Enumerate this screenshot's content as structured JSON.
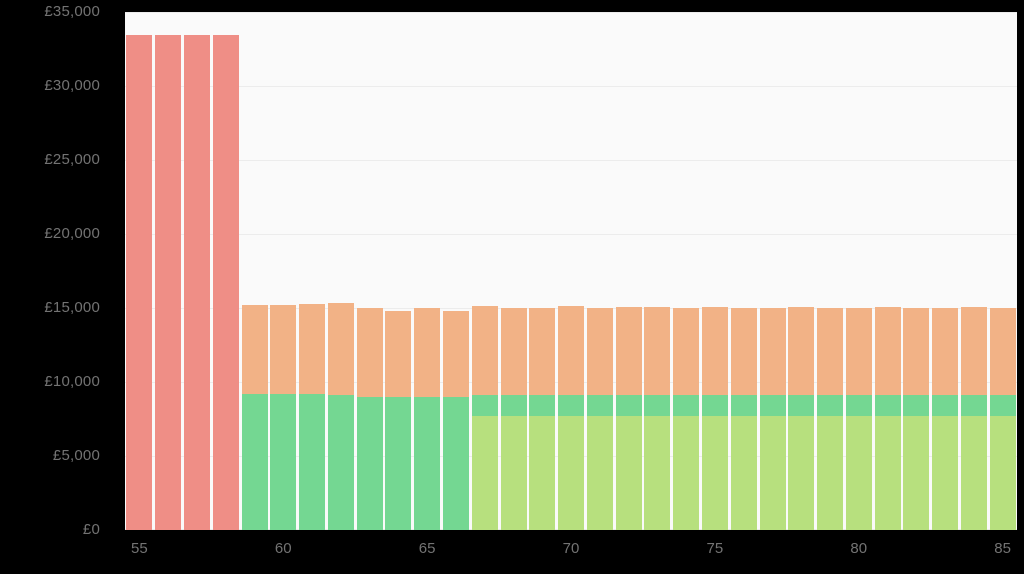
{
  "page": {
    "background": "#000000"
  },
  "chart_data": {
    "type": "bar",
    "stacked": true,
    "title": "",
    "xlabel": "",
    "ylabel": "",
    "x_unit": "age",
    "ylim": [
      0,
      35000
    ],
    "ytick_step": 5000,
    "grid": true,
    "legend": "none",
    "plot_background": "#fafafa",
    "gridline_color": "#ececec",
    "axis_label_color": "#737373",
    "bar_gap_color": "#ffffff",
    "colors": {
      "red": "#ef8e86",
      "orange": "#f2b286",
      "green": "#74d792",
      "light_green": "#b7e07e"
    },
    "yticks": [
      {
        "value": 0,
        "label": "£0"
      },
      {
        "value": 5000,
        "label": "£5,000"
      },
      {
        "value": 10000,
        "label": "£10,000"
      },
      {
        "value": 15000,
        "label": "£15,000"
      },
      {
        "value": 20000,
        "label": "£20,000"
      },
      {
        "value": 25000,
        "label": "£25,000"
      },
      {
        "value": 30000,
        "label": "£30,000"
      },
      {
        "value": 35000,
        "label": "£35,000"
      }
    ],
    "xticks": [
      55,
      60,
      65,
      70,
      75,
      80,
      85
    ],
    "bars": [
      {
        "age": 55,
        "segments": [
          {
            "series": "red",
            "value": 33450
          }
        ]
      },
      {
        "age": 56,
        "segments": [
          {
            "series": "red",
            "value": 33450
          }
        ]
      },
      {
        "age": 57,
        "segments": [
          {
            "series": "red",
            "value": 33450
          }
        ]
      },
      {
        "age": 58,
        "segments": [
          {
            "series": "red",
            "value": 33450
          }
        ]
      },
      {
        "age": 59,
        "segments": [
          {
            "series": "green",
            "value": 9200
          },
          {
            "series": "orange",
            "value": 6000
          }
        ]
      },
      {
        "age": 60,
        "segments": [
          {
            "series": "green",
            "value": 9200
          },
          {
            "series": "orange",
            "value": 6000
          }
        ]
      },
      {
        "age": 61,
        "segments": [
          {
            "series": "green",
            "value": 9200
          },
          {
            "series": "orange",
            "value": 6050
          }
        ]
      },
      {
        "age": 62,
        "segments": [
          {
            "series": "green",
            "value": 9150
          },
          {
            "series": "orange",
            "value": 6200
          }
        ]
      },
      {
        "age": 63,
        "segments": [
          {
            "series": "green",
            "value": 9000
          },
          {
            "series": "orange",
            "value": 6000
          }
        ]
      },
      {
        "age": 64,
        "segments": [
          {
            "series": "green",
            "value": 9000
          },
          {
            "series": "orange",
            "value": 5800
          }
        ]
      },
      {
        "age": 65,
        "segments": [
          {
            "series": "green",
            "value": 9000
          },
          {
            "series": "orange",
            "value": 6000
          }
        ]
      },
      {
        "age": 66,
        "segments": [
          {
            "series": "green",
            "value": 9000
          },
          {
            "series": "orange",
            "value": 5800
          }
        ]
      },
      {
        "age": 67,
        "segments": [
          {
            "series": "light_green",
            "value": 7700
          },
          {
            "series": "green",
            "value": 1450
          },
          {
            "series": "orange",
            "value": 6000
          }
        ]
      },
      {
        "age": 68,
        "segments": [
          {
            "series": "light_green",
            "value": 7700
          },
          {
            "series": "green",
            "value": 1400
          },
          {
            "series": "orange",
            "value": 5900
          }
        ]
      },
      {
        "age": 69,
        "segments": [
          {
            "series": "light_green",
            "value": 7700
          },
          {
            "series": "green",
            "value": 1400
          },
          {
            "series": "orange",
            "value": 5900
          }
        ]
      },
      {
        "age": 70,
        "segments": [
          {
            "series": "light_green",
            "value": 7700
          },
          {
            "series": "green",
            "value": 1400
          },
          {
            "series": "orange",
            "value": 6050
          }
        ]
      },
      {
        "age": 71,
        "segments": [
          {
            "series": "light_green",
            "value": 7700
          },
          {
            "series": "green",
            "value": 1400
          },
          {
            "series": "orange",
            "value": 5900
          }
        ]
      },
      {
        "age": 72,
        "segments": [
          {
            "series": "light_green",
            "value": 7700
          },
          {
            "series": "green",
            "value": 1400
          },
          {
            "series": "orange",
            "value": 6000
          }
        ]
      },
      {
        "age": 73,
        "segments": [
          {
            "series": "light_green",
            "value": 7700
          },
          {
            "series": "green",
            "value": 1400
          },
          {
            "series": "orange",
            "value": 6000
          }
        ]
      },
      {
        "age": 74,
        "segments": [
          {
            "series": "light_green",
            "value": 7700
          },
          {
            "series": "green",
            "value": 1400
          },
          {
            "series": "orange",
            "value": 5900
          }
        ]
      },
      {
        "age": 75,
        "segments": [
          {
            "series": "light_green",
            "value": 7700
          },
          {
            "series": "green",
            "value": 1400
          },
          {
            "series": "orange",
            "value": 6000
          }
        ]
      },
      {
        "age": 76,
        "segments": [
          {
            "series": "light_green",
            "value": 7700
          },
          {
            "series": "green",
            "value": 1400
          },
          {
            "series": "orange",
            "value": 5900
          }
        ]
      },
      {
        "age": 77,
        "segments": [
          {
            "series": "light_green",
            "value": 7700
          },
          {
            "series": "green",
            "value": 1400
          },
          {
            "series": "orange",
            "value": 5900
          }
        ]
      },
      {
        "age": 78,
        "segments": [
          {
            "series": "light_green",
            "value": 7700
          },
          {
            "series": "green",
            "value": 1400
          },
          {
            "series": "orange",
            "value": 5950
          }
        ]
      },
      {
        "age": 79,
        "segments": [
          {
            "series": "light_green",
            "value": 7700
          },
          {
            "series": "green",
            "value": 1400
          },
          {
            "series": "orange",
            "value": 5900
          }
        ]
      },
      {
        "age": 80,
        "segments": [
          {
            "series": "light_green",
            "value": 7700
          },
          {
            "series": "green",
            "value": 1400
          },
          {
            "series": "orange",
            "value": 5900
          }
        ]
      },
      {
        "age": 81,
        "segments": [
          {
            "series": "light_green",
            "value": 7700
          },
          {
            "series": "green",
            "value": 1400
          },
          {
            "series": "orange",
            "value": 5950
          }
        ]
      },
      {
        "age": 82,
        "segments": [
          {
            "series": "light_green",
            "value": 7700
          },
          {
            "series": "green",
            "value": 1400
          },
          {
            "series": "orange",
            "value": 5900
          }
        ]
      },
      {
        "age": 83,
        "segments": [
          {
            "series": "light_green",
            "value": 7700
          },
          {
            "series": "green",
            "value": 1400
          },
          {
            "series": "orange",
            "value": 5900
          }
        ]
      },
      {
        "age": 84,
        "segments": [
          {
            "series": "light_green",
            "value": 7700
          },
          {
            "series": "green",
            "value": 1400
          },
          {
            "series": "orange",
            "value": 5950
          }
        ]
      },
      {
        "age": 85,
        "segments": [
          {
            "series": "light_green",
            "value": 7700
          },
          {
            "series": "green",
            "value": 1400
          },
          {
            "series": "orange",
            "value": 5900
          }
        ]
      }
    ]
  }
}
